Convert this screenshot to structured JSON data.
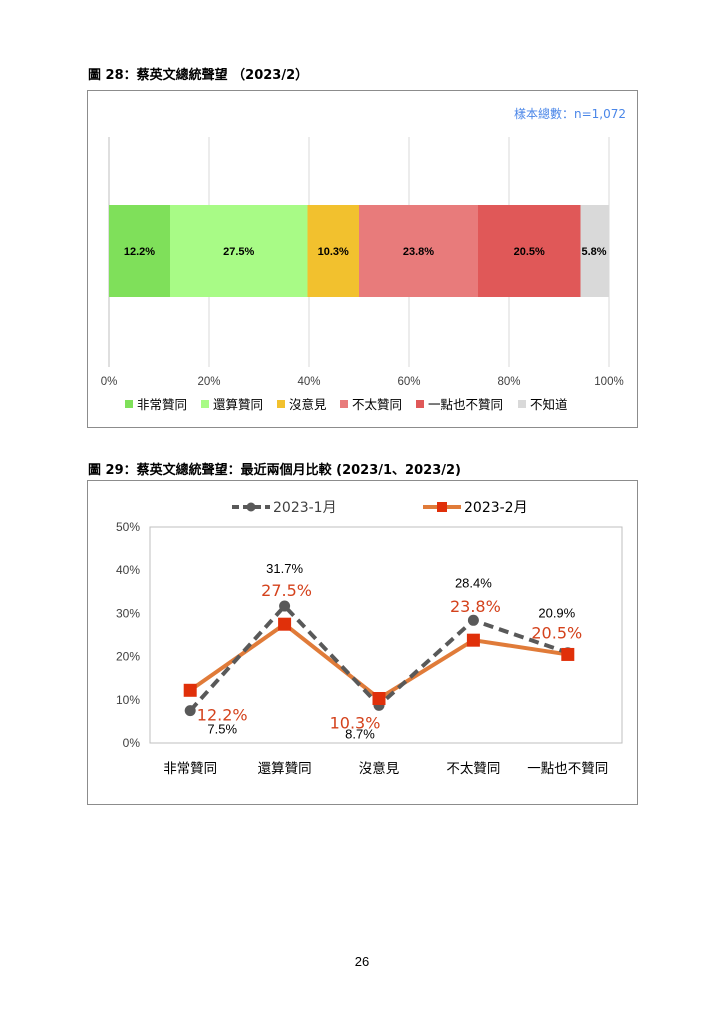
{
  "page_number": "26",
  "colors": {
    "strongly_agree": "#7fe05a",
    "somewhat_agree": "#a8fb86",
    "no_opinion": "#f2c12e",
    "somewhat_disagree": "#e87b7b",
    "strongly_disagree": "#e05858",
    "dont_know": "#d9d9d9",
    "series_jan": "#595959",
    "series_feb": "#e07b39",
    "series_feb_marker": "#e0300a",
    "series_feb_label": "#d4421c",
    "sample_text": "#4a86e8"
  },
  "chart_data": [
    {
      "type": "bar",
      "orientation": "horizontal-stacked",
      "title": "圖 28：蔡英文總統聲望 （2023/2）",
      "sample_size_label": "樣本總數：n=1,072",
      "categories": [
        "非常贊同",
        "還算贊同",
        "沒意見",
        "不太贊同",
        "一點也不贊同",
        "不知道"
      ],
      "values": [
        12.2,
        27.5,
        10.3,
        23.8,
        20.5,
        5.8
      ],
      "value_labels": [
        "12.2%",
        "27.5%",
        "10.3%",
        "23.8%",
        "20.5%",
        "5.8%"
      ],
      "x_ticks": [
        "0%",
        "20%",
        "40%",
        "60%",
        "80%",
        "100%"
      ],
      "xlim": [
        0,
        100
      ],
      "grid": true,
      "legend_position": "bottom"
    },
    {
      "type": "line",
      "title": "圖 29：蔡英文總統聲望：最近兩個月比較  (2023/1、2023/2)",
      "categories": [
        "非常贊同",
        "還算贊同",
        "沒意見",
        "不太贊同",
        "一點也不贊同"
      ],
      "series": [
        {
          "name": "2023-1月",
          "values": [
            7.5,
            31.7,
            8.7,
            28.4,
            20.9
          ],
          "labels": [
            "7.5%",
            "31.7%",
            "8.7%",
            "28.4%",
            "20.9%"
          ]
        },
        {
          "name": "2023-2月",
          "values": [
            12.2,
            27.5,
            10.3,
            23.8,
            20.5
          ],
          "labels": [
            "12.2%",
            "27.5%",
            "10.3%",
            "23.8%",
            "20.5%"
          ]
        }
      ],
      "y_ticks": [
        "0%",
        "10%",
        "20%",
        "30%",
        "40%",
        "50%"
      ],
      "ylim": [
        0,
        50
      ],
      "grid": false,
      "legend_position": "top"
    }
  ]
}
